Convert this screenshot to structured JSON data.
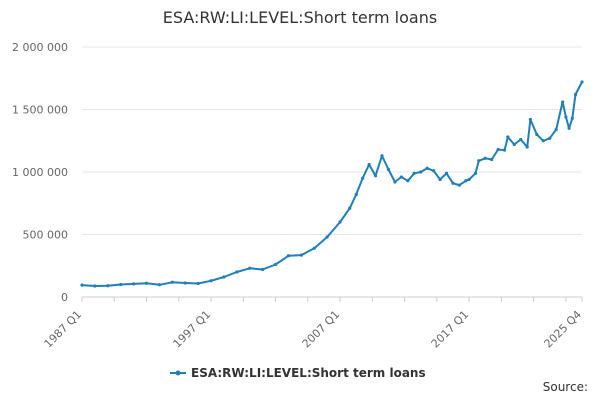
{
  "chart_data": {
    "type": "line",
    "title": "ESA:RW:LI:LEVEL:Short term loans",
    "xlabel": "",
    "ylabel": "",
    "x_tick_labels": [
      "1987 Q1",
      "1997 Q1",
      "2007 Q1",
      "2017 Q1",
      "2025 Q4"
    ],
    "y_tick_labels": [
      "0",
      "500 000",
      "1 000 000",
      "1 500 000",
      "2 000 000"
    ],
    "ylim": [
      0,
      2000000
    ],
    "grid": "horizontal",
    "legend": "bottom-center",
    "series_color": "#1f7fb8",
    "series": [
      {
        "name": "ESA:RW:LI:LEVEL:Short term loans",
        "points": [
          [
            "1987 Q1",
            95000
          ],
          [
            "1988 Q1",
            88000
          ],
          [
            "1989 Q1",
            90000
          ],
          [
            "1990 Q1",
            100000
          ],
          [
            "1991 Q1",
            105000
          ],
          [
            "1992 Q1",
            110000
          ],
          [
            "1993 Q1",
            98000
          ],
          [
            "1994 Q1",
            118000
          ],
          [
            "1995 Q1",
            112000
          ],
          [
            "1996 Q1",
            108000
          ],
          [
            "1997 Q1",
            130000
          ],
          [
            "1998 Q1",
            160000
          ],
          [
            "1999 Q1",
            200000
          ],
          [
            "2000 Q1",
            230000
          ],
          [
            "2001 Q1",
            220000
          ],
          [
            "2002 Q1",
            260000
          ],
          [
            "2003 Q1",
            330000
          ],
          [
            "2004 Q1",
            335000
          ],
          [
            "2005 Q1",
            390000
          ],
          [
            "2006 Q1",
            480000
          ],
          [
            "2007 Q1",
            600000
          ],
          [
            "2007 Q4",
            710000
          ],
          [
            "2008 Q2",
            820000
          ],
          [
            "2008 Q4",
            950000
          ],
          [
            "2009 Q2",
            1060000
          ],
          [
            "2009 Q4",
            970000
          ],
          [
            "2010 Q2",
            1130000
          ],
          [
            "2010 Q4",
            1020000
          ],
          [
            "2011 Q2",
            920000
          ],
          [
            "2011 Q4",
            960000
          ],
          [
            "2012 Q2",
            930000
          ],
          [
            "2012 Q4",
            990000
          ],
          [
            "2013 Q2",
            1000000
          ],
          [
            "2013 Q4",
            1030000
          ],
          [
            "2014 Q2",
            1010000
          ],
          [
            "2014 Q4",
            940000
          ],
          [
            "2015 Q2",
            990000
          ],
          [
            "2015 Q4",
            910000
          ],
          [
            "2016 Q2",
            895000
          ],
          [
            "2016 Q4",
            930000
          ],
          [
            "2017 Q1",
            940000
          ],
          [
            "2017 Q3",
            990000
          ],
          [
            "2017 Q4",
            1090000
          ],
          [
            "2018 Q2",
            1110000
          ],
          [
            "2018 Q4",
            1100000
          ],
          [
            "2019 Q2",
            1180000
          ],
          [
            "2019 Q4",
            1175000
          ],
          [
            "2020 Q1",
            1280000
          ],
          [
            "2020 Q3",
            1220000
          ],
          [
            "2021 Q1",
            1260000
          ],
          [
            "2021 Q3",
            1200000
          ],
          [
            "2021 Q4",
            1420000
          ],
          [
            "2022 Q2",
            1300000
          ],
          [
            "2022 Q4",
            1250000
          ],
          [
            "2023 Q2",
            1270000
          ],
          [
            "2023 Q4",
            1340000
          ],
          [
            "2024 Q2",
            1560000
          ],
          [
            "2024 Q3",
            1440000
          ],
          [
            "2024 Q4",
            1350000
          ],
          [
            "2025 Q1",
            1430000
          ],
          [
            "2025 Q2",
            1620000
          ],
          [
            "2025 Q4",
            1720000
          ]
        ]
      }
    ]
  },
  "source_label": "Source:"
}
